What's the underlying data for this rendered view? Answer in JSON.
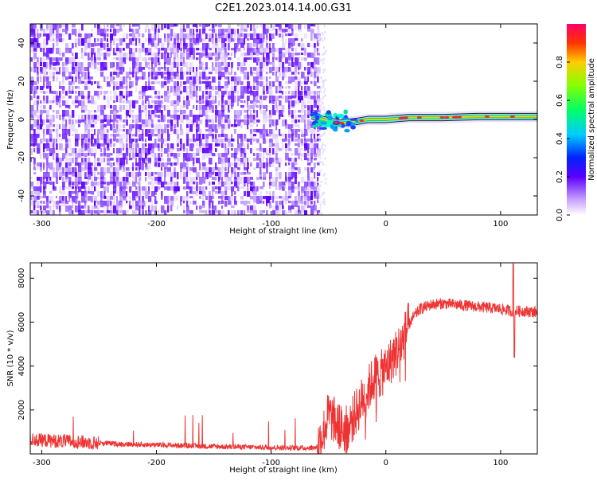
{
  "figure": {
    "title": "C2E1.2023.014.14.00.G31"
  },
  "colors": {
    "snr_line": "#ee3333",
    "frame": "#000000",
    "background": "#ffffff"
  },
  "chart_data": [
    {
      "type": "heatmap",
      "title": "C2E1.2023.014.14.00.G31",
      "xlabel": "Height of straight line (km)",
      "ylabel": "Frequency (Hz)",
      "xlim": [
        -310,
        132
      ],
      "ylim": [
        -50,
        50
      ],
      "xticks": [
        -300,
        -200,
        -100,
        0,
        100
      ],
      "yticks": [
        -40,
        -20,
        0,
        20,
        40
      ],
      "colorbar": {
        "label": "Normalized spectral amplitude",
        "range": [
          0,
          1
        ],
        "ticks": [
          0.0,
          0.2,
          0.4,
          0.6,
          0.8
        ]
      },
      "noise_region_x": [
        -310,
        -60
      ],
      "signal_track": [
        {
          "x": -65,
          "y": 2
        },
        {
          "x": -55,
          "y": 0
        },
        {
          "x": -40,
          "y": -2
        },
        {
          "x": -25,
          "y": -1
        },
        {
          "x": -15,
          "y": 0
        },
        {
          "x": 0,
          "y": 0
        },
        {
          "x": 20,
          "y": 1
        },
        {
          "x": 50,
          "y": 1
        },
        {
          "x": 80,
          "y": 1.5
        },
        {
          "x": 110,
          "y": 1.5
        },
        {
          "x": 132,
          "y": 1.5
        }
      ],
      "grid": false
    },
    {
      "type": "line",
      "xlabel": "Height of straight line (km)",
      "ylabel": "SNR (10 * v/v)",
      "xlim": [
        -310,
        132
      ],
      "ylim": [
        0,
        8700
      ],
      "xticks": [
        -300,
        -200,
        -100,
        0,
        100
      ],
      "yticks": [
        2000,
        4000,
        6000,
        8000
      ],
      "series": [
        {
          "x": [
            -310,
            -290,
            -270,
            -250,
            -230,
            -210,
            -190,
            -170,
            -150,
            -130,
            -110,
            -90,
            -70,
            -60,
            -55,
            -50,
            -45,
            -40,
            -35,
            -30,
            -25,
            -20,
            -15,
            -10,
            -5,
            0,
            5,
            10,
            15,
            20,
            25,
            30,
            40,
            50,
            60,
            70,
            80,
            90,
            100,
            110,
            120,
            132
          ],
          "values": [
            650,
            600,
            550,
            500,
            450,
            420,
            400,
            370,
            340,
            320,
            300,
            280,
            270,
            300,
            900,
            1800,
            1500,
            1200,
            1100,
            1500,
            2000,
            2500,
            3000,
            3500,
            3600,
            3900,
            4300,
            4700,
            5200,
            5900,
            6300,
            6600,
            6800,
            6850,
            6800,
            6750,
            6700,
            6650,
            6600,
            6500,
            6500,
            6450
          ]
        }
      ],
      "grid": false
    }
  ]
}
